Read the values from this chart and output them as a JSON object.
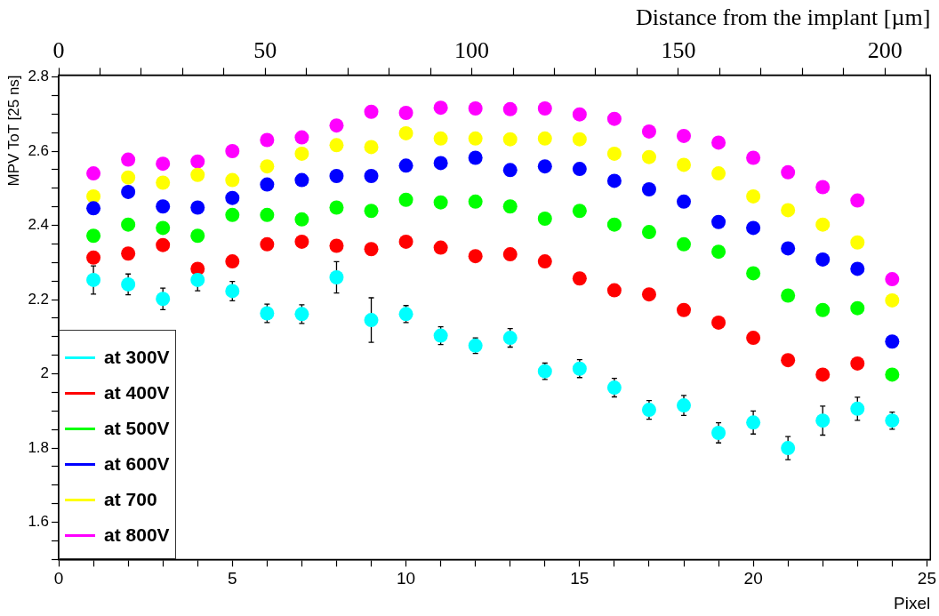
{
  "chart_data": {
    "type": "scatter",
    "xlabel": "Pixel",
    "ylabel": "MPV ToT [25 ns]",
    "x2label": "Distance from the implant [µm]",
    "x": [
      1,
      2,
      3,
      4,
      5,
      6,
      7,
      8,
      9,
      10,
      11,
      12,
      13,
      14,
      15,
      16,
      17,
      18,
      19,
      20,
      21,
      22,
      23,
      24
    ],
    "xlim": [
      0,
      25.1
    ],
    "ylim": [
      1.5,
      2.805
    ],
    "x2lim": [
      0,
      211
    ],
    "xticks": [
      0,
      {
        "value": 1,
        "label": null
      },
      {
        "value": 2,
        "label": null
      },
      {
        "value": 3,
        "label": null
      },
      {
        "value": 4,
        "label": null
      },
      5,
      {
        "value": 6,
        "label": null
      },
      {
        "value": 7,
        "label": null
      },
      {
        "value": 8,
        "label": null
      },
      {
        "value": 9,
        "label": null
      },
      10,
      {
        "value": 11,
        "label": null
      },
      {
        "value": 12,
        "label": null
      },
      {
        "value": 13,
        "label": null
      },
      {
        "value": 14,
        "label": null
      },
      15,
      {
        "value": 16,
        "label": null
      },
      {
        "value": 17,
        "label": null
      },
      {
        "value": 18,
        "label": null
      },
      {
        "value": 19,
        "label": null
      },
      20,
      {
        "value": 21,
        "label": null
      },
      {
        "value": 22,
        "label": null
      },
      {
        "value": 23,
        "label": null
      },
      {
        "value": 24,
        "label": null
      },
      25
    ],
    "x2ticks": [
      0,
      {
        "value": 10,
        "label": null
      },
      {
        "value": 20,
        "label": null
      },
      {
        "value": 30,
        "label": null
      },
      {
        "value": 40,
        "label": null
      },
      50,
      {
        "value": 60,
        "label": null
      },
      {
        "value": 70,
        "label": null
      },
      {
        "value": 80,
        "label": null
      },
      {
        "value": 90,
        "label": null
      },
      100,
      {
        "value": 110,
        "label": null
      },
      {
        "value": 120,
        "label": null
      },
      {
        "value": 130,
        "label": null
      },
      {
        "value": 140,
        "label": null
      },
      150,
      {
        "value": 160,
        "label": null
      },
      {
        "value": 170,
        "label": null
      },
      {
        "value": 180,
        "label": null
      },
      {
        "value": 190,
        "label": null
      },
      200,
      {
        "value": 210,
        "label": null
      }
    ],
    "yticks": [
      {
        "value": 1.5,
        "label": null
      },
      {
        "value": 1.55,
        "label": null
      },
      1.6,
      {
        "value": 1.65,
        "label": null
      },
      {
        "value": 1.7,
        "label": null
      },
      {
        "value": 1.75,
        "label": null
      },
      1.8,
      {
        "value": 1.85,
        "label": null
      },
      {
        "value": 1.9,
        "label": null
      },
      {
        "value": 1.95,
        "label": null
      },
      2,
      {
        "value": 2.05,
        "label": null
      },
      {
        "value": 2.1,
        "label": null
      },
      {
        "value": 2.15,
        "label": null
      },
      2.2,
      {
        "value": 2.25,
        "label": null
      },
      {
        "value": 2.3,
        "label": null
      },
      {
        "value": 2.35,
        "label": null
      },
      2.4,
      {
        "value": 2.45,
        "label": null
      },
      {
        "value": 2.5,
        "label": null
      },
      {
        "value": 2.55,
        "label": null
      },
      2.6,
      {
        "value": 2.65,
        "label": null
      },
      {
        "value": 2.7,
        "label": null
      },
      {
        "value": 2.75,
        "label": null
      },
      2.8
    ],
    "marker": "circle",
    "legend": "bottom left",
    "series": [
      {
        "name": "at 300V",
        "color": "#00ffff",
        "values": [
          2.253,
          2.241,
          2.202,
          2.253,
          2.223,
          2.163,
          2.161,
          2.26,
          2.145,
          2.161,
          2.103,
          2.076,
          2.097,
          2.007,
          2.014,
          1.963,
          1.903,
          1.915,
          1.841,
          1.869,
          1.8,
          1.874,
          1.906,
          1.874
        ],
        "errors": [
          0.038,
          0.028,
          0.029,
          0.029,
          0.026,
          0.025,
          0.025,
          0.042,
          0.06,
          0.023,
          0.024,
          0.021,
          0.025,
          0.022,
          0.024,
          0.025,
          0.025,
          0.027,
          0.027,
          0.031,
          0.031,
          0.039,
          0.031,
          0.023
        ]
      },
      {
        "name": "at 400V",
        "color": "#ff0000",
        "values": [
          2.313,
          2.324,
          2.347,
          2.283,
          2.303,
          2.349,
          2.356,
          2.345,
          2.336,
          2.356,
          2.34,
          2.317,
          2.322,
          2.303,
          2.257,
          2.225,
          2.214,
          2.172,
          2.138,
          2.097,
          2.037,
          1.998,
          2.028,
          null
        ]
      },
      {
        "name": "at 500V",
        "color": "#00ff00",
        "values": [
          2.372,
          2.402,
          2.393,
          2.372,
          2.428,
          2.428,
          2.416,
          2.448,
          2.439,
          2.469,
          2.462,
          2.464,
          2.451,
          2.418,
          2.439,
          2.402,
          2.382,
          2.349,
          2.329,
          2.271,
          2.211,
          2.172,
          2.177,
          1.998
        ]
      },
      {
        "name": "at 600V",
        "color": "#0000ff",
        "values": [
          2.446,
          2.49,
          2.451,
          2.448,
          2.474,
          2.51,
          2.522,
          2.533,
          2.533,
          2.561,
          2.568,
          2.582,
          2.549,
          2.559,
          2.552,
          2.52,
          2.497,
          2.464,
          2.409,
          2.393,
          2.338,
          2.308,
          2.283,
          2.087
        ]
      },
      {
        "name": "at 700",
        "color": "#ffff00",
        "values": [
          2.478,
          2.529,
          2.515,
          2.536,
          2.522,
          2.559,
          2.593,
          2.616,
          2.611,
          2.648,
          2.634,
          2.634,
          2.632,
          2.634,
          2.632,
          2.593,
          2.584,
          2.563,
          2.54,
          2.478,
          2.441,
          2.402,
          2.354,
          2.198
        ]
      },
      {
        "name": "at 800V",
        "color": "#ff00ff",
        "values": [
          2.54,
          2.577,
          2.566,
          2.572,
          2.6,
          2.63,
          2.637,
          2.669,
          2.706,
          2.703,
          2.717,
          2.715,
          2.713,
          2.715,
          2.699,
          2.687,
          2.653,
          2.641,
          2.623,
          2.582,
          2.543,
          2.503,
          2.467,
          2.255
        ]
      }
    ]
  }
}
